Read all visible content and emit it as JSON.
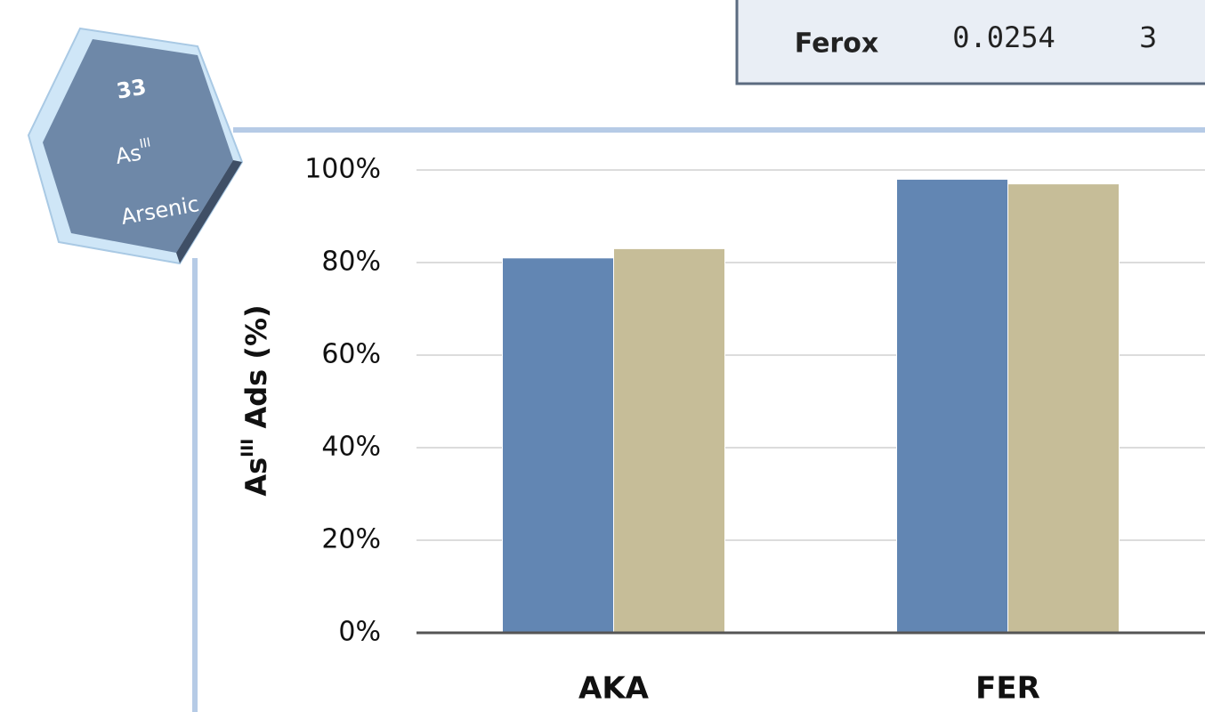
{
  "badge": {
    "number": "33",
    "symbol": "As",
    "symbol_sup": "III",
    "name": "Arsenic"
  },
  "table": {
    "rows": [
      [
        "Ferox",
        "0.0254",
        "3"
      ]
    ]
  },
  "chart_data": {
    "type": "bar",
    "ylabel": {
      "base": "As",
      "sup": "III",
      "rest": " Ads (%)"
    },
    "categories": [
      "AKA",
      "FER"
    ],
    "series": [
      {
        "color": "#6286b3",
        "values": [
          81,
          98
        ]
      },
      {
        "color": "#c6bd98",
        "values": [
          83,
          97
        ]
      }
    ],
    "ylim": [
      0,
      100
    ],
    "yticks": [
      {
        "value": 0,
        "label": "0%"
      },
      {
        "value": 20,
        "label": "20%"
      },
      {
        "value": 40,
        "label": "40%"
      },
      {
        "value": 60,
        "label": "60%"
      },
      {
        "value": 80,
        "label": "80%"
      },
      {
        "value": 100,
        "label": "100%"
      }
    ],
    "grid": true
  }
}
